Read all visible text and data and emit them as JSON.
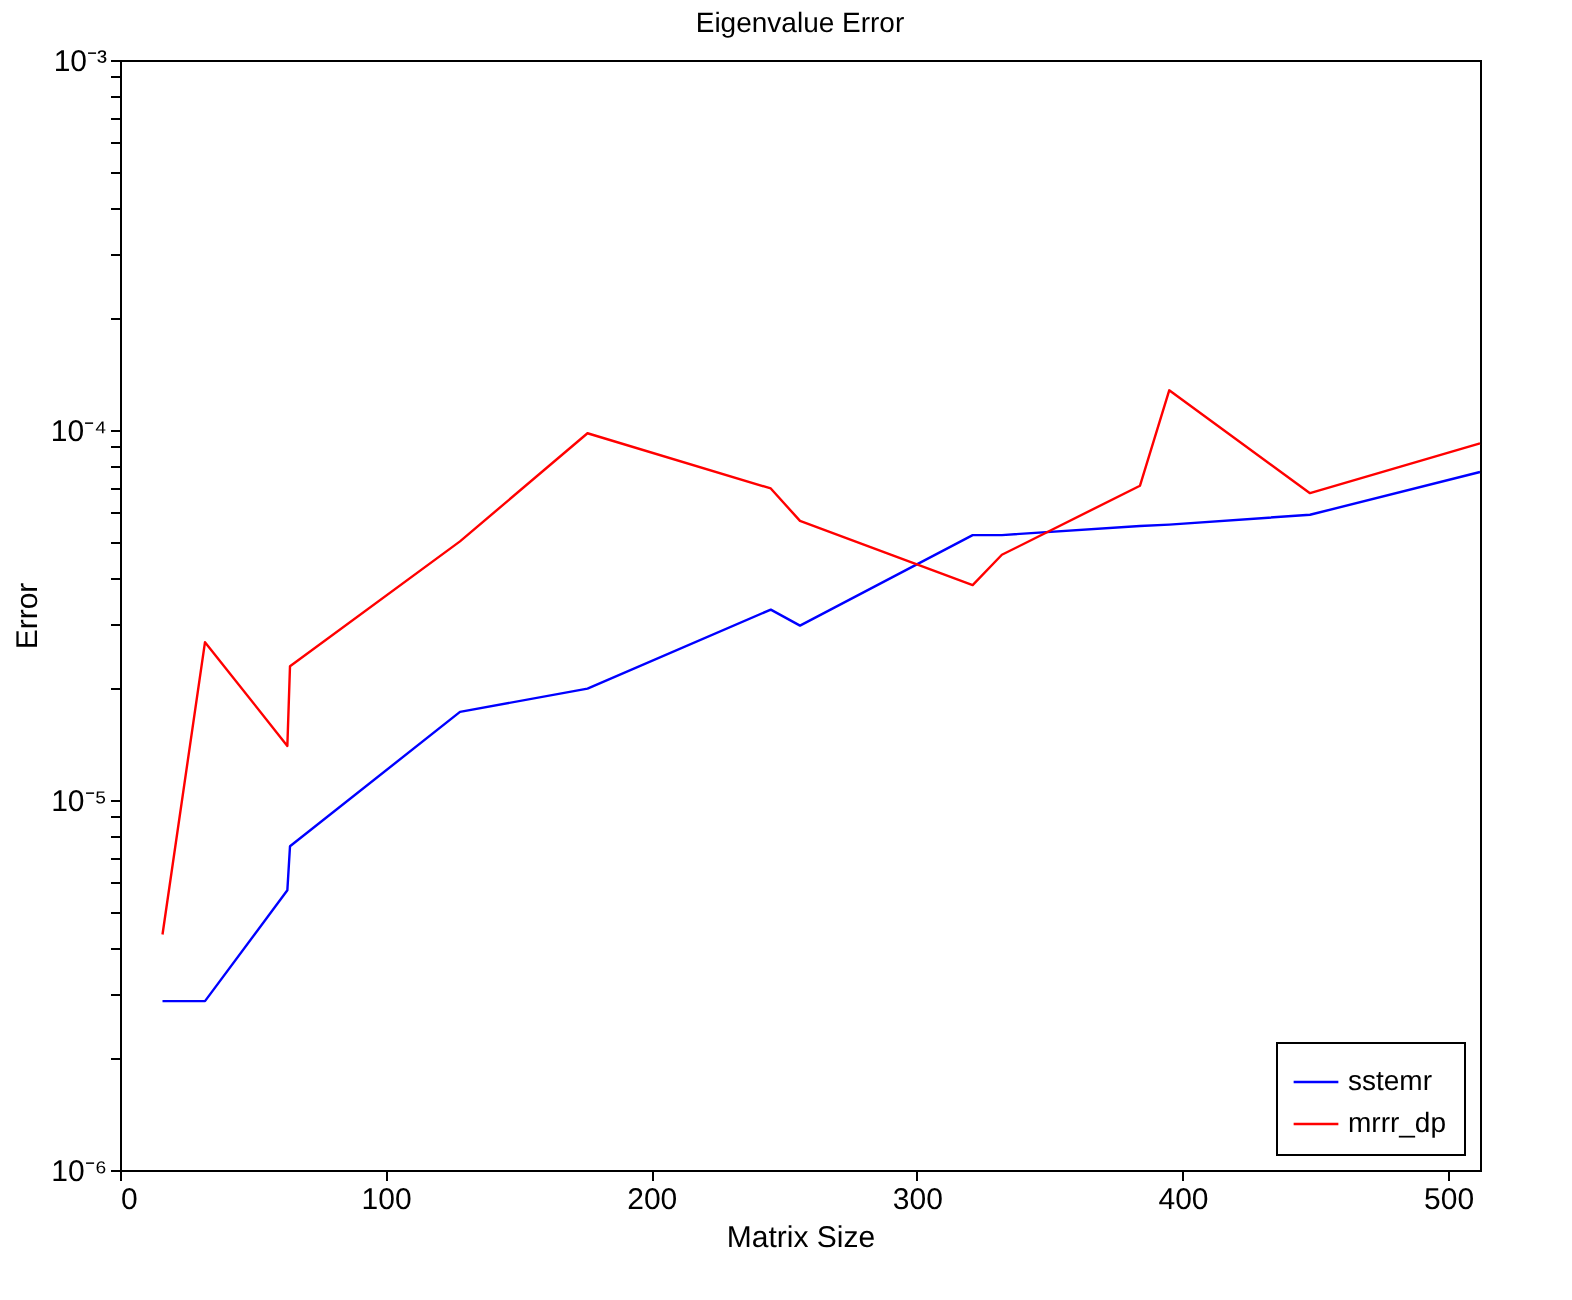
{
  "chart_data": {
    "type": "line",
    "title": "Eigenvalue Error",
    "xlabel": "Matrix Size",
    "ylabel": "Error",
    "x": [
      16,
      32,
      63,
      64,
      128,
      176,
      245,
      256,
      321,
      332,
      384,
      395,
      448,
      512
    ],
    "series": [
      {
        "name": "sstemr",
        "color": "#0000ff",
        "values": [
          2.86e-06,
          2.86e-06,
          5.7e-06,
          7.5e-06,
          1.73e-05,
          2e-05,
          3.27e-05,
          2.96e-05,
          5.2e-05,
          5.2e-05,
          5.5e-05,
          5.55e-05,
          5.9e-05,
          7.7e-05
        ]
      },
      {
        "name": "mrrr_dp",
        "color": "#ff0000",
        "values": [
          4.33e-06,
          2.67e-05,
          1.4e-05,
          2.3e-05,
          5e-05,
          9.8e-05,
          6.95e-05,
          5.68e-05,
          3.81e-05,
          4.6e-05,
          7.07e-05,
          0.000128,
          6.75e-05,
          9.2e-05
        ]
      }
    ],
    "xlim": [
      0,
      512
    ],
    "xticks": [
      0,
      100,
      200,
      300,
      400,
      500
    ],
    "log": "y",
    "ylim": [
      1e-06,
      0.001
    ],
    "yticks": [
      {
        "value": 1e-06,
        "label": "10⁻⁶"
      },
      {
        "value": 2e-06,
        "label": null
      },
      {
        "value": 3e-06,
        "label": null
      },
      {
        "value": 4e-06,
        "label": null
      },
      {
        "value": 5e-06,
        "label": null
      },
      {
        "value": 6e-06,
        "label": null
      },
      {
        "value": 7e-06,
        "label": null
      },
      {
        "value": 8e-06,
        "label": null
      },
      {
        "value": 9e-06,
        "label": null
      },
      {
        "value": 1e-05,
        "label": "10⁻⁵"
      },
      {
        "value": 2e-05,
        "label": null
      },
      {
        "value": 3e-05,
        "label": null
      },
      {
        "value": 4e-05,
        "label": null
      },
      {
        "value": 5e-05,
        "label": null
      },
      {
        "value": 6e-05,
        "label": null
      },
      {
        "value": 7e-05,
        "label": null
      },
      {
        "value": 8e-05,
        "label": null
      },
      {
        "value": 9e-05,
        "label": null
      },
      {
        "value": 0.0001,
        "label": "10⁻⁴"
      },
      {
        "value": 0.0002,
        "label": null
      },
      {
        "value": 0.0003,
        "label": null
      },
      {
        "value": 0.0004,
        "label": null
      },
      {
        "value": 0.0005,
        "label": null
      },
      {
        "value": 0.0006,
        "label": null
      },
      {
        "value": 0.0007,
        "label": null
      },
      {
        "value": 0.0008,
        "label": null
      },
      {
        "value": 0.0009,
        "label": null
      },
      {
        "value": 0.001,
        "label": "10⁻³"
      }
    ],
    "grid": false,
    "legend": "bottom right",
    "marker": "none",
    "line_style": "solid"
  }
}
